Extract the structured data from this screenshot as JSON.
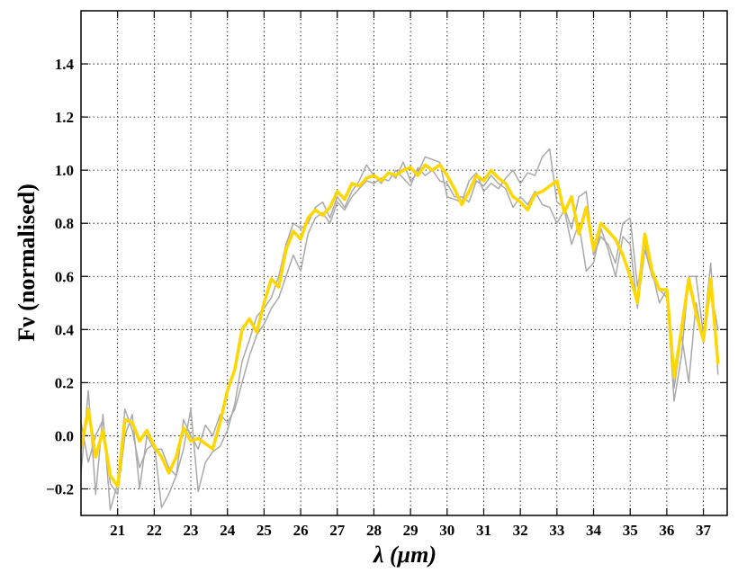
{
  "chart_data": {
    "type": "line",
    "xlabel": "λ (μm)",
    "ylabel": "Fν (normalised)",
    "xlim": [
      20.0,
      37.65
    ],
    "ylim": [
      -0.3,
      1.6
    ],
    "xticks": [
      21,
      22,
      23,
      24,
      25,
      26,
      27,
      28,
      29,
      30,
      31,
      32,
      33,
      34,
      35,
      36,
      37
    ],
    "yticks": [
      {
        "value": -0.2,
        "label": "−0.2"
      },
      {
        "value": 0,
        "label": "0.0"
      },
      0.2,
      0.4,
      0.6,
      0.8,
      {
        "value": 1,
        "label": "1.0"
      },
      1.2,
      1.4
    ],
    "grid": true,
    "x": [
      20.0,
      20.2,
      20.4,
      20.6,
      20.8,
      21.0,
      21.2,
      21.4,
      21.6,
      21.8,
      22.0,
      22.2,
      22.4,
      22.6,
      22.8,
      23.0,
      23.2,
      23.4,
      23.6,
      23.8,
      24.0,
      24.2,
      24.4,
      24.6,
      24.8,
      25.0,
      25.2,
      25.4,
      25.6,
      25.8,
      26.0,
      26.2,
      26.4,
      26.6,
      26.8,
      27.0,
      27.2,
      27.4,
      27.6,
      27.8,
      28.0,
      28.2,
      28.4,
      28.6,
      28.8,
      29.0,
      29.2,
      29.4,
      29.6,
      29.8,
      30.0,
      30.2,
      30.4,
      30.6,
      30.8,
      31.0,
      31.2,
      31.4,
      31.6,
      31.8,
      32.0,
      32.2,
      32.4,
      32.6,
      32.8,
      33.0,
      33.2,
      33.4,
      33.6,
      33.8,
      34.0,
      34.2,
      34.4,
      34.6,
      34.8,
      35.0,
      35.2,
      35.4,
      35.6,
      35.8,
      36.0,
      36.2,
      36.4,
      36.6,
      36.8,
      37.0,
      37.2,
      37.4
    ],
    "series": [
      {
        "color": "#a9a9a9",
        "width": 1.5,
        "values": [
          -0.14,
          0.17,
          -0.22,
          0.08,
          -0.28,
          -0.18,
          0.1,
          0.02,
          -0.12,
          -0.05,
          -0.03,
          -0.27,
          -0.22,
          -0.15,
          -0.05,
          0.1,
          -0.21,
          -0.1,
          -0.06,
          -0.04,
          0.02,
          0.12,
          0.28,
          0.36,
          0.45,
          0.48,
          0.52,
          0.6,
          0.72,
          0.8,
          0.78,
          0.8,
          0.86,
          0.88,
          0.82,
          0.9,
          0.86,
          0.92,
          0.96,
          1.02,
          0.98,
          0.95,
          0.99,
          0.97,
          1.03,
          0.96,
          0.99,
          1.05,
          1.04,
          1.03,
          0.9,
          0.89,
          0.88,
          0.96,
          0.99,
          0.92,
          0.95,
          0.93,
          0.97,
          1.0,
          0.95,
          0.99,
          0.98,
          1.05,
          1.08,
          0.88,
          0.86,
          0.78,
          0.9,
          0.92,
          0.68,
          0.75,
          0.72,
          0.65,
          0.8,
          0.82,
          0.56,
          0.72,
          0.62,
          0.5,
          0.55,
          0.13,
          0.3,
          0.6,
          0.6,
          0.38,
          0.65,
          0.23
        ]
      },
      {
        "color": "#a9a9a9",
        "width": 1.5,
        "values": [
          0.05,
          -0.1,
          0.0,
          0.06,
          -0.18,
          -0.22,
          0.0,
          0.08,
          -0.2,
          0.0,
          -0.05,
          -0.05,
          -0.12,
          -0.15,
          0.06,
          0.0,
          -0.05,
          0.04,
          0.0,
          0.08,
          0.05,
          0.1,
          0.2,
          0.3,
          0.38,
          0.42,
          0.48,
          0.52,
          0.6,
          0.68,
          0.62,
          0.76,
          0.82,
          0.84,
          0.8,
          0.88,
          0.85,
          0.9,
          0.93,
          0.96,
          0.95,
          0.97,
          0.96,
          1.0,
          0.97,
          0.94,
          1.01,
          0.98,
          1.0,
          0.96,
          0.95,
          0.9,
          0.9,
          0.88,
          0.96,
          0.94,
          0.98,
          0.95,
          0.93,
          0.86,
          0.9,
          0.87,
          0.92,
          0.87,
          0.86,
          0.8,
          0.85,
          0.72,
          0.8,
          0.62,
          0.65,
          0.78,
          0.7,
          0.6,
          0.75,
          0.72,
          0.48,
          0.7,
          0.6,
          0.55,
          0.52,
          0.18,
          0.38,
          0.2,
          0.5,
          0.35,
          0.55,
          0.4
        ]
      },
      {
        "color": "#ffd700",
        "width": 3.5,
        "values": [
          -0.05,
          0.1,
          -0.08,
          0.02,
          -0.15,
          -0.19,
          0.06,
          0.05,
          -0.02,
          0.02,
          -0.04,
          -0.08,
          -0.14,
          -0.08,
          0.03,
          -0.02,
          -0.01,
          -0.03,
          -0.05,
          0.05,
          0.17,
          0.25,
          0.4,
          0.44,
          0.39,
          0.5,
          0.59,
          0.56,
          0.7,
          0.77,
          0.74,
          0.82,
          0.85,
          0.83,
          0.86,
          0.92,
          0.89,
          0.95,
          0.94,
          0.97,
          0.98,
          0.96,
          0.99,
          0.98,
          1.0,
          1.01,
          0.98,
          1.02,
          1.0,
          1.02,
          0.98,
          0.93,
          0.87,
          0.92,
          0.98,
          0.96,
          1.0,
          0.97,
          0.95,
          0.9,
          0.88,
          0.85,
          0.91,
          0.92,
          0.94,
          0.96,
          0.84,
          0.9,
          0.76,
          0.86,
          0.7,
          0.8,
          0.77,
          0.74,
          0.68,
          0.6,
          0.5,
          0.76,
          0.62,
          0.55,
          0.55,
          0.22,
          0.4,
          0.59,
          0.46,
          0.36,
          0.59,
          0.27
        ]
      }
    ]
  }
}
